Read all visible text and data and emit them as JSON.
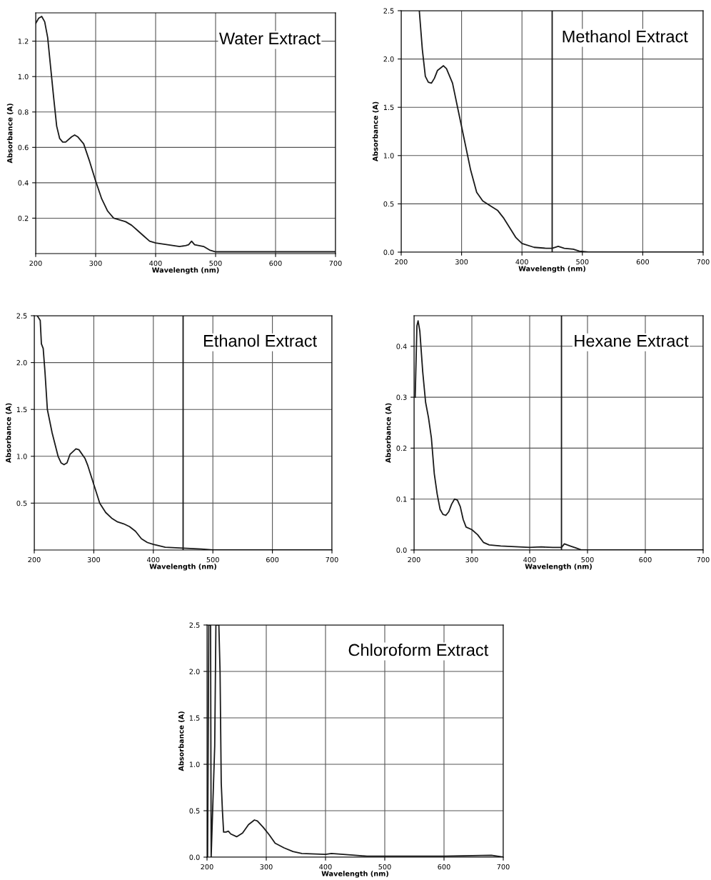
{
  "chart_data": [
    {
      "type": "line",
      "title": "Water Extract",
      "xlabel": "Wavelength (nm)",
      "ylabel": "Absorbance (A)",
      "xlim": [
        200,
        700
      ],
      "ylim": [
        0,
        1.36
      ],
      "xticks": [
        200,
        300,
        400,
        500,
        600,
        700
      ],
      "yticks": [
        0.2,
        0.4,
        0.6,
        0.8,
        {
          "value": 1,
          "label": "1.0"
        },
        1.2
      ],
      "grid": true,
      "series": [
        {
          "color": "#1a1a1a",
          "x": [
            200,
            205,
            210,
            215,
            220,
            225,
            230,
            235,
            240,
            245,
            250,
            260,
            265,
            270,
            280,
            290,
            300,
            310,
            320,
            330,
            340,
            350,
            360,
            370,
            380,
            390,
            400,
            420,
            440,
            450,
            455,
            460,
            465,
            480,
            490,
            500,
            550,
            600,
            700
          ],
          "values": [
            1.3,
            1.33,
            1.34,
            1.31,
            1.22,
            1.05,
            0.88,
            0.72,
            0.65,
            0.63,
            0.63,
            0.66,
            0.67,
            0.66,
            0.62,
            0.52,
            0.41,
            0.31,
            0.24,
            0.2,
            0.19,
            0.18,
            0.16,
            0.13,
            0.1,
            0.07,
            0.06,
            0.05,
            0.04,
            0.045,
            0.05,
            0.07,
            0.05,
            0.04,
            0.02,
            0.01,
            0.01,
            0.01,
            0.01
          ]
        }
      ]
    },
    {
      "type": "line",
      "title": "Methanol Extract",
      "xlabel": "Wavelength (nm)",
      "ylabel": "Absorbance (A)",
      "xlim": [
        200,
        700
      ],
      "ylim": [
        0,
        2.5
      ],
      "xticks": [
        200,
        300,
        400,
        500,
        600,
        700
      ],
      "yticks": [
        {
          "value": 0,
          "label": "0.0"
        },
        0.5,
        {
          "value": 1,
          "label": "1.0"
        },
        1.5,
        {
          "value": 2,
          "label": "2.0"
        },
        2.5
      ],
      "grid": true,
      "ref_lines": [
        {
          "axis": "x",
          "value": 450,
          "color": "#1a1a1a"
        }
      ],
      "series": [
        {
          "color": "#1a1a1a",
          "x": [
            230,
            235,
            240,
            245,
            250,
            255,
            260,
            270,
            275,
            285,
            295,
            305,
            315,
            325,
            335,
            345,
            360,
            370,
            380,
            390,
            400,
            420,
            440,
            450,
            460,
            470,
            485,
            495,
            510,
            700
          ],
          "values": [
            2.5,
            2.1,
            1.82,
            1.76,
            1.75,
            1.8,
            1.88,
            1.93,
            1.9,
            1.75,
            1.45,
            1.15,
            0.85,
            0.62,
            0.53,
            0.49,
            0.43,
            0.35,
            0.25,
            0.15,
            0.09,
            0.05,
            0.04,
            0.04,
            0.06,
            0.04,
            0.03,
            0.01,
            0.0,
            0.0
          ]
        }
      ]
    },
    {
      "type": "line",
      "title": "Ethanol Extract",
      "xlabel": "Wavelength (nm)",
      "ylabel": "Absorbance (A)",
      "xlim": [
        200,
        700
      ],
      "ylim": [
        0,
        2.5
      ],
      "xticks": [
        200,
        300,
        400,
        500,
        600,
        700
      ],
      "yticks": [
        0.5,
        {
          "value": 1,
          "label": "1.0"
        },
        1.5,
        {
          "value": 2,
          "label": "2.0"
        },
        2.5
      ],
      "grid": true,
      "ref_lines": [
        {
          "axis": "x",
          "value": 450,
          "color": "#1a1a1a"
        }
      ],
      "series": [
        {
          "color": "#1a1a1a",
          "x": [
            205,
            210,
            212,
            215,
            218,
            222,
            230,
            240,
            245,
            250,
            255,
            260,
            270,
            275,
            285,
            290,
            300,
            310,
            320,
            330,
            340,
            350,
            360,
            370,
            380,
            390,
            400,
            420,
            450,
            480,
            500,
            700
          ],
          "values": [
            2.5,
            2.45,
            2.2,
            2.15,
            1.9,
            1.5,
            1.25,
            1.0,
            0.93,
            0.91,
            0.93,
            1.02,
            1.08,
            1.07,
            0.98,
            0.9,
            0.7,
            0.5,
            0.4,
            0.34,
            0.3,
            0.28,
            0.25,
            0.2,
            0.12,
            0.08,
            0.06,
            0.03,
            0.02,
            0.01,
            0.0,
            0.0
          ]
        }
      ]
    },
    {
      "type": "line",
      "title": "Hexane Extract",
      "xlabel": "Wavelength (nm)",
      "ylabel": "Absorbance (A)",
      "xlim": [
        200,
        700
      ],
      "ylim": [
        0,
        0.46
      ],
      "xticks": [
        200,
        300,
        400,
        500,
        600,
        700
      ],
      "yticks": [
        {
          "value": 0,
          "label": "0.0"
        },
        0.1,
        0.2,
        0.3,
        0.4
      ],
      "grid": true,
      "ref_lines": [
        {
          "axis": "x",
          "value": 455,
          "color": "#1a1a1a"
        }
      ],
      "series": [
        {
          "color": "#1a1a1a",
          "x": [
            202,
            205,
            207,
            210,
            215,
            220,
            225,
            230,
            235,
            240,
            245,
            250,
            255,
            260,
            265,
            270,
            275,
            280,
            285,
            290,
            300,
            310,
            320,
            330,
            350,
            400,
            420,
            440,
            455,
            460,
            470,
            480,
            490,
            700
          ],
          "values": [
            0.3,
            0.44,
            0.45,
            0.43,
            0.35,
            0.29,
            0.26,
            0.22,
            0.15,
            0.11,
            0.08,
            0.07,
            0.068,
            0.075,
            0.09,
            0.1,
            0.098,
            0.085,
            0.06,
            0.045,
            0.04,
            0.03,
            0.015,
            0.01,
            0.008,
            0.005,
            0.006,
            0.005,
            0.005,
            0.012,
            0.008,
            0.004,
            0.0,
            0.0
          ]
        }
      ]
    },
    {
      "type": "line",
      "title": "Chloroform Extract",
      "xlabel": "Wavelength (nm)",
      "ylabel": "Absorbance (A)",
      "xlim": [
        200,
        700
      ],
      "ylim": [
        0,
        2.5
      ],
      "xticks": [
        200,
        300,
        400,
        500,
        600,
        700
      ],
      "yticks": [
        {
          "value": 0,
          "label": "0.0"
        },
        0.5,
        {
          "value": 1,
          "label": "1.0"
        },
        1.5,
        {
          "value": 2,
          "label": "2.0"
        },
        2.5
      ],
      "grid": true,
      "series": [
        {
          "color": "#1a1a1a",
          "x": [
            201,
            203,
            206,
            207,
            213,
            215,
            220,
            222,
            224,
            226,
            228,
            232,
            236,
            240,
            250,
            260,
            270,
            280,
            285,
            295,
            305,
            315,
            330,
            345,
            360,
            400,
            410,
            430,
            450,
            470,
            550,
            600,
            680,
            700
          ],
          "values": [
            0.0,
            2.5,
            2.5,
            0.0,
            1.2,
            2.5,
            2.5,
            2.0,
            0.8,
            0.5,
            0.27,
            0.27,
            0.28,
            0.25,
            0.22,
            0.26,
            0.35,
            0.4,
            0.39,
            0.32,
            0.24,
            0.15,
            0.1,
            0.06,
            0.04,
            0.03,
            0.04,
            0.03,
            0.02,
            0.01,
            0.01,
            0.01,
            0.02,
            0.0
          ]
        }
      ]
    }
  ]
}
